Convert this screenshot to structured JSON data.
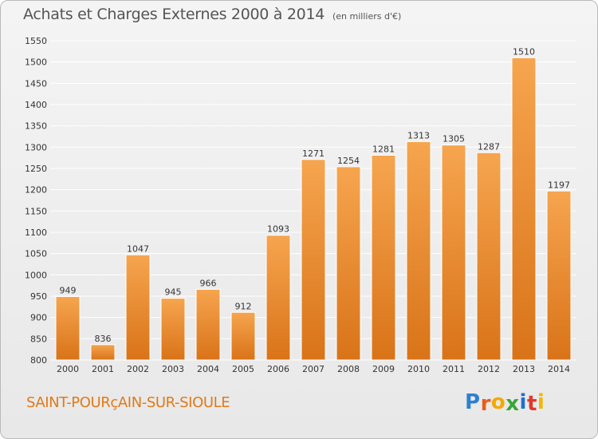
{
  "header": {
    "title": "Achats et Charges Externes 2000 à 2014",
    "subtitle": "(en milliers d'€)"
  },
  "footer": {
    "place": "SAINT-POURçAIN-SUR-SIOULE",
    "logo_letters": [
      "P",
      "r",
      "o",
      "x",
      "i",
      "t",
      "i"
    ],
    "logo_colors": [
      "#2f7fcf",
      "#e85d1a",
      "#f5a800",
      "#3aa53a",
      "#1f6fd0",
      "#e03a2a",
      "#f2b700"
    ]
  },
  "colors": {
    "bar_top": "#f6a54f",
    "bar_bottom": "#d97318",
    "grid": "#ffffff",
    "axis_text": "#333333"
  },
  "chart_data": {
    "type": "bar",
    "title": "Achats et Charges Externes 2000 à 2014",
    "subtitle": "(en milliers d'€)",
    "categories": [
      "2000",
      "2001",
      "2002",
      "2003",
      "2004",
      "2005",
      "2006",
      "2007",
      "2008",
      "2009",
      "2010",
      "2011",
      "2012",
      "2013",
      "2014"
    ],
    "values": [
      949,
      836,
      1047,
      945,
      966,
      912,
      1093,
      1271,
      1254,
      1281,
      1313,
      1305,
      1287,
      1510,
      1197
    ],
    "ylim": [
      800,
      1550
    ],
    "yticks": [
      800,
      850,
      900,
      950,
      1000,
      1050,
      1100,
      1150,
      1200,
      1250,
      1300,
      1350,
      1400,
      1450,
      1500,
      1550
    ],
    "grid": true,
    "xlabel": "",
    "ylabel": ""
  }
}
